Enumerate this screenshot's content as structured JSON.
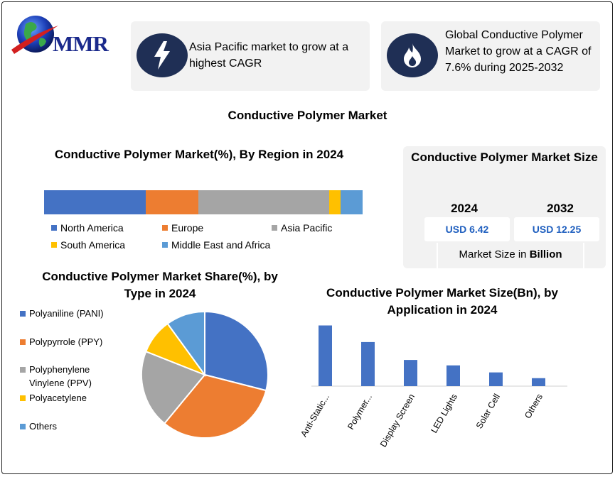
{
  "brand": {
    "logo_text": "MMR"
  },
  "cards": [
    {
      "text": "Asia Pacific market to grow at a highest CAGR",
      "icon": "lightning-icon"
    },
    {
      "text": "Global Conductive Polymer Market to grow at a CAGR of 7.6% during 2025-2032",
      "icon": "flame-icon"
    }
  ],
  "main_title": "Conductive Polymer Market",
  "market_size": {
    "title": "Conductive Polymer Market Size",
    "years": [
      {
        "year": "2024",
        "value": "USD 6.42"
      },
      {
        "year": "2032",
        "value": "USD 12.25"
      }
    ],
    "unit_prefix": "Market Size in ",
    "unit_bold": "Billion"
  },
  "chart_data": [
    {
      "type": "bar",
      "orientation": "horizontal-stacked",
      "title": "Conductive Polymer Market(%), By Region in 2024",
      "series": [
        {
          "name": "North America",
          "value": 32,
          "color": "#4472c4"
        },
        {
          "name": "Europe",
          "value": 16.5,
          "color": "#ed7d31"
        },
        {
          "name": "Asia Pacific",
          "value": 41,
          "color": "#a5a5a5"
        },
        {
          "name": "South America",
          "value": 3.5,
          "color": "#ffc000"
        },
        {
          "name": "Middle East and Africa",
          "value": 7,
          "color": "#5b9bd5"
        }
      ],
      "legend": "bottom"
    },
    {
      "type": "pie",
      "title": "Conductive Polymer Market Share(%), by Type in 2024",
      "slices": [
        {
          "name": "Polyaniline (PANI)",
          "value": 29,
          "color": "#4472c4"
        },
        {
          "name": "Polypyrrole (PPY)",
          "value": 32,
          "color": "#ed7d31"
        },
        {
          "name": "Polyphenylene Vinylene (PPV)",
          "value": 20,
          "color": "#a5a5a5"
        },
        {
          "name": "Polyacetylene",
          "value": 9,
          "color": "#ffc000"
        },
        {
          "name": "Others",
          "value": 10,
          "color": "#5b9bd5"
        }
      ],
      "legend": "left"
    },
    {
      "type": "bar",
      "title": "Conductive Polymer Market Size(Bn), by Application in 2024",
      "categories": [
        "Anti-Static...",
        "Polymer...",
        "Display Screen",
        "LED Lights",
        "Solar Cell",
        "Others"
      ],
      "values": [
        1.9,
        1.38,
        0.82,
        0.65,
        0.43,
        0.25
      ],
      "ylim": [
        0,
        2.0
      ],
      "color": "#4472c4",
      "grid": false
    }
  ]
}
